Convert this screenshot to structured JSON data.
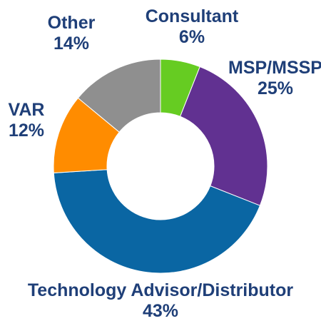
{
  "chart_data": {
    "type": "pie",
    "donut": true,
    "legend": "none",
    "slices": [
      {
        "label": "Consultant",
        "value": 6,
        "value_label": "6%",
        "color": "#66cc22"
      },
      {
        "label": "MSP/MSSP",
        "value": 25,
        "value_label": "25%",
        "color": "#613191"
      },
      {
        "label": "Technology Advisor/Distributor",
        "value": 43,
        "value_label": "43%",
        "color": "#0a66a3"
      },
      {
        "label": "VAR",
        "value": 12,
        "value_label": "12%",
        "color": "#ff8c00"
      },
      {
        "label": "Other",
        "value": 14,
        "value_label": "14%",
        "color": "#8f8f8f"
      }
    ]
  }
}
